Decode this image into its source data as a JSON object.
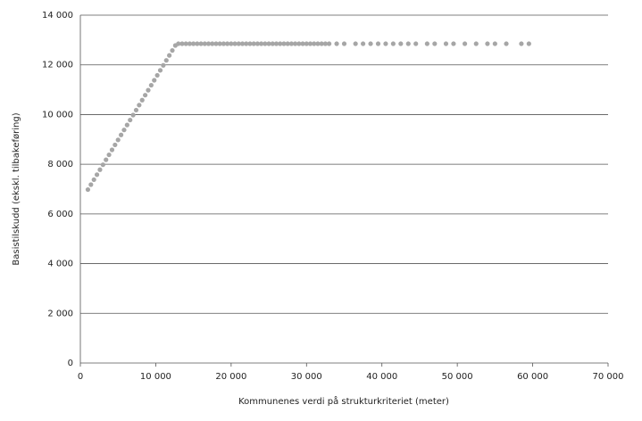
{
  "chart_data": {
    "type": "scatter",
    "x_label": "Kommunenes verdi på strukturkriteriet (meter)",
    "y_label": "Basistilskudd (ekskl. tilbakeføring)",
    "color": "#a6a6a6",
    "grid": true,
    "xlim": [
      0,
      70000
    ],
    "ylim": [
      0,
      14000
    ],
    "xticks": [
      0,
      {
        "value": 10000,
        "label": "10 000"
      },
      {
        "value": 20000,
        "label": "20 000"
      },
      {
        "value": 30000,
        "label": "30 000"
      },
      {
        "value": 40000,
        "label": "40 000"
      },
      {
        "value": 50000,
        "label": "50 000"
      },
      {
        "value": 60000,
        "label": "60 000"
      },
      {
        "value": 70000,
        "label": "70 000"
      }
    ],
    "yticks": [
      0,
      {
        "value": 2000,
        "label": "2 000"
      },
      {
        "value": 4000,
        "label": "4 000"
      },
      {
        "value": 6000,
        "label": "6 000"
      },
      {
        "value": 8000,
        "label": "8 000"
      },
      {
        "value": 10000,
        "label": "10 000"
      },
      {
        "value": 12000,
        "label": "12 000"
      },
      {
        "value": 14000,
        "label": "14 000"
      }
    ],
    "x": [
      1000,
      1400,
      1800,
      2200,
      2600,
      3000,
      3400,
      3800,
      4200,
      4600,
      5000,
      5400,
      5800,
      6200,
      6600,
      7000,
      7400,
      7800,
      8200,
      8600,
      9000,
      9400,
      9800,
      10200,
      10600,
      11000,
      11400,
      11800,
      12200,
      12600,
      13000,
      13500,
      14000,
      14500,
      15000,
      15500,
      16000,
      16500,
      17000,
      17500,
      18000,
      18500,
      19000,
      19500,
      20000,
      20500,
      21000,
      21500,
      22000,
      22500,
      23000,
      23500,
      24000,
      24500,
      25000,
      25500,
      26000,
      26500,
      27000,
      27500,
      28000,
      28500,
      29000,
      29500,
      30000,
      30500,
      31000,
      31500,
      32000,
      32500,
      33000,
      34000,
      35000,
      36500,
      37500,
      38500,
      39500,
      40500,
      41500,
      42500,
      43500,
      44500,
      46000,
      47000,
      48500,
      49500,
      51000,
      52500,
      54000,
      55000,
      56500,
      58500,
      59500
    ],
    "values": [
      6980,
      7180,
      7380,
      7580,
      7780,
      7980,
      8180,
      8380,
      8580,
      8780,
      8980,
      9180,
      9380,
      9580,
      9780,
      9980,
      10180,
      10380,
      10580,
      10780,
      10980,
      11180,
      11380,
      11580,
      11780,
      11980,
      12180,
      12380,
      12580,
      12780,
      12850,
      12850,
      12850,
      12850,
      12850,
      12850,
      12850,
      12850,
      12850,
      12850,
      12850,
      12850,
      12850,
      12850,
      12850,
      12850,
      12850,
      12850,
      12850,
      12850,
      12850,
      12850,
      12850,
      12850,
      12850,
      12850,
      12850,
      12850,
      12850,
      12850,
      12850,
      12850,
      12850,
      12850,
      12850,
      12850,
      12850,
      12850,
      12850,
      12850,
      12850,
      12850,
      12850,
      12850,
      12850,
      12850,
      12850,
      12850,
      12850,
      12850,
      12850,
      12850,
      12850,
      12850,
      12850,
      12850,
      12850,
      12850,
      12850,
      12850,
      12850,
      12850,
      12850
    ]
  }
}
